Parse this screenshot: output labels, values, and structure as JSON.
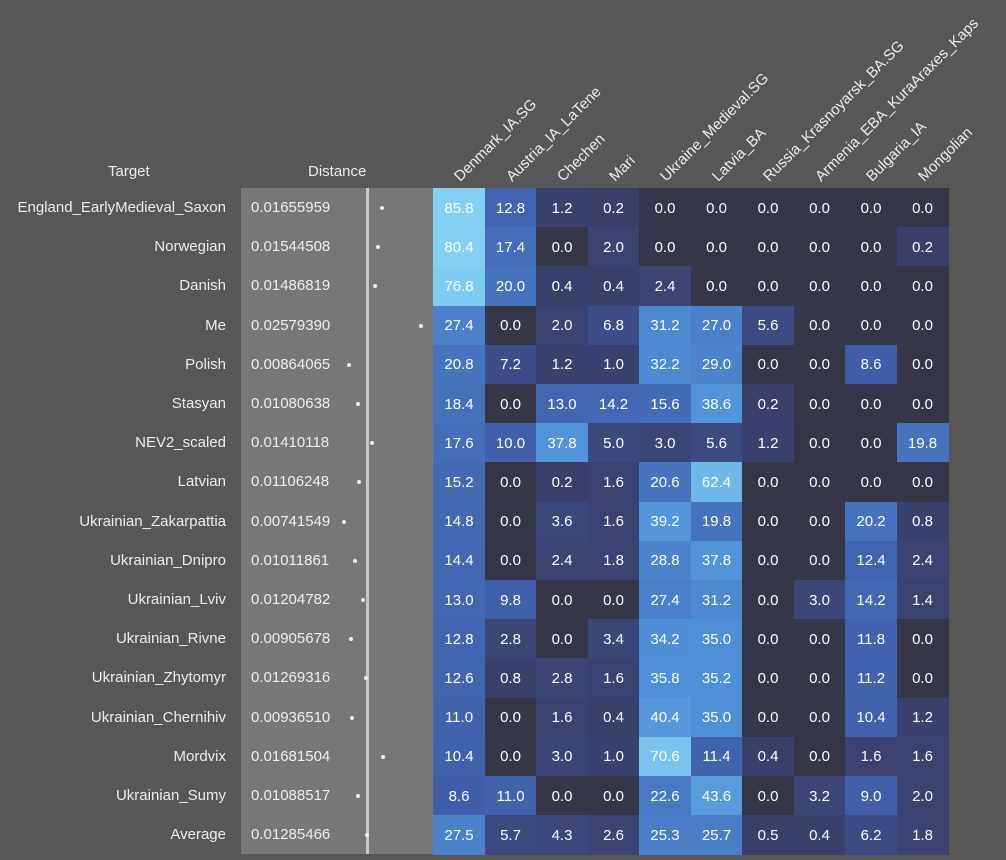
{
  "headers": {
    "target": "Target",
    "distance": "Distance"
  },
  "chart_data": {
    "type": "heatmap",
    "columns": [
      "Denmark_IA.SG",
      "Austria_IA_LaTene",
      "Chechen",
      "Mari",
      "Ukraine_Medieval.SG",
      "Latvia_BA",
      "Russia_Krasnoyarsk_BA.SG",
      "Armenia_EBA_KuraAraxes_Kaps",
      "Bulgaria_IA",
      "Mongolian"
    ],
    "rows": [
      {
        "target": "England_EarlyMedieval_Saxon",
        "distance": "0.01655959",
        "dist_value": 0.01655959,
        "values": [
          "85.8",
          "12.8",
          "1.2",
          "0.2",
          "0.0",
          "0.0",
          "0.0",
          "0.0",
          "0.0",
          "0.0"
        ]
      },
      {
        "target": "Norwegian",
        "distance": "0.01544508",
        "dist_value": 0.01544508,
        "values": [
          "80.4",
          "17.4",
          "0.0",
          "2.0",
          "0.0",
          "0.0",
          "0.0",
          "0.0",
          "0.0",
          "0.2"
        ]
      },
      {
        "target": "Danish",
        "distance": "0.01486819",
        "dist_value": 0.01486819,
        "values": [
          "76.8",
          "20.0",
          "0.4",
          "0.4",
          "2.4",
          "0.0",
          "0.0",
          "0.0",
          "0.0",
          "0.0"
        ]
      },
      {
        "target": "Me",
        "distance": "0.02579390",
        "dist_value": 0.0257939,
        "values": [
          "27.4",
          "0.0",
          "2.0",
          "6.8",
          "31.2",
          "27.0",
          "5.6",
          "0.0",
          "0.0",
          "0.0"
        ]
      },
      {
        "target": "Polish",
        "distance": "0.00864065",
        "dist_value": 0.00864065,
        "values": [
          "20.8",
          "7.2",
          "1.2",
          "1.0",
          "32.2",
          "29.0",
          "0.0",
          "0.0",
          "8.6",
          "0.0"
        ]
      },
      {
        "target": "Stasyan",
        "distance": "0.01080638",
        "dist_value": 0.01080638,
        "values": [
          "18.4",
          "0.0",
          "13.0",
          "14.2",
          "15.6",
          "38.6",
          "0.2",
          "0.0",
          "0.0",
          "0.0"
        ]
      },
      {
        "target": "NEV2_scaled",
        "distance": "0.01410118",
        "dist_value": 0.01410118,
        "values": [
          "17.6",
          "10.0",
          "37.8",
          "5.0",
          "3.0",
          "5.6",
          "1.2",
          "0.0",
          "0.0",
          "19.8"
        ]
      },
      {
        "target": "Latvian",
        "distance": "0.01106248",
        "dist_value": 0.01106248,
        "values": [
          "15.2",
          "0.0",
          "0.2",
          "1.6",
          "20.6",
          "62.4",
          "0.0",
          "0.0",
          "0.0",
          "0.0"
        ]
      },
      {
        "target": "Ukrainian_Zakarpattia",
        "distance": "0.00741549",
        "dist_value": 0.00741549,
        "values": [
          "14.8",
          "0.0",
          "3.6",
          "1.6",
          "39.2",
          "19.8",
          "0.0",
          "0.0",
          "20.2",
          "0.8"
        ]
      },
      {
        "target": "Ukrainian_Dnipro",
        "distance": "0.01011861",
        "dist_value": 0.01011861,
        "values": [
          "14.4",
          "0.0",
          "2.4",
          "1.8",
          "28.8",
          "37.8",
          "0.0",
          "0.0",
          "12.4",
          "2.4"
        ]
      },
      {
        "target": "Ukrainian_Lviv",
        "distance": "0.01204782",
        "dist_value": 0.01204782,
        "values": [
          "13.0",
          "9.8",
          "0.0",
          "0.0",
          "27.4",
          "31.2",
          "0.0",
          "3.0",
          "14.2",
          "1.4"
        ]
      },
      {
        "target": "Ukrainian_Rivne",
        "distance": "0.00905678",
        "dist_value": 0.00905678,
        "values": [
          "12.8",
          "2.8",
          "0.0",
          "3.4",
          "34.2",
          "35.0",
          "0.0",
          "0.0",
          "11.8",
          "0.0"
        ]
      },
      {
        "target": "Ukrainian_Zhytomyr",
        "distance": "0.01269316",
        "dist_value": 0.01269316,
        "values": [
          "12.6",
          "0.8",
          "2.8",
          "1.6",
          "35.8",
          "35.2",
          "0.0",
          "0.0",
          "11.2",
          "0.0"
        ]
      },
      {
        "target": "Ukrainian_Chernihiv",
        "distance": "0.00936510",
        "dist_value": 0.0093651,
        "values": [
          "11.0",
          "0.0",
          "1.6",
          "0.4",
          "40.4",
          "35.0",
          "0.0",
          "0.0",
          "10.4",
          "1.2"
        ]
      },
      {
        "target": "Mordvix",
        "distance": "0.01681504",
        "dist_value": 0.01681504,
        "values": [
          "10.4",
          "0.0",
          "3.0",
          "1.0",
          "70.6",
          "11.4",
          "0.4",
          "0.0",
          "1.6",
          "1.6"
        ]
      },
      {
        "target": "Ukrainian_Sumy",
        "distance": "0.01088517",
        "dist_value": 0.01088517,
        "values": [
          "8.6",
          "11.0",
          "0.0",
          "0.0",
          "22.6",
          "43.6",
          "0.0",
          "3.2",
          "9.0",
          "2.0"
        ]
      },
      {
        "target": "Average",
        "distance": "0.01285466",
        "dist_value": 0.01285466,
        "values": [
          "27.5",
          "5.7",
          "4.3",
          "2.6",
          "25.3",
          "25.7",
          "0.5",
          "0.4",
          "6.2",
          "1.8"
        ]
      }
    ],
    "colors": {
      "zero": "#363649",
      "low": "#3a3f6a",
      "mid": "#3f5ca8",
      "high": "#4e90d8",
      "max": "#84d0f4",
      "background": "#575757",
      "distance_panel": "#777777"
    }
  }
}
